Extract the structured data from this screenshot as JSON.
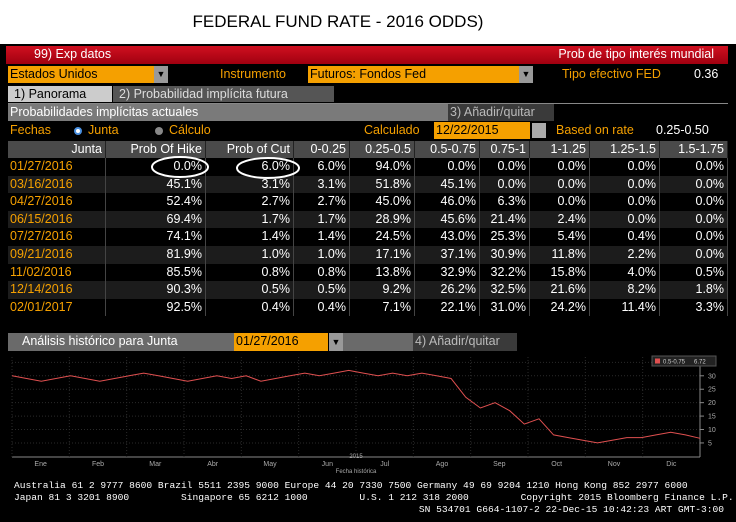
{
  "header": {
    "title": "FEDERAL FUND RATE - 2016 ODDS)"
  },
  "menu": {
    "left": "99) Exp datos",
    "right": "Prob de tipo interés mundial"
  },
  "controls": {
    "country": "Estados Unidos",
    "instrument_label": "Instrumento",
    "instrument": "Futuros: Fondos Fed",
    "effective_label": "Tipo efectivo FED",
    "effective_value": "0.36"
  },
  "tabs": [
    "1) Panorama",
    "2) Probabilidad implícita futura"
  ],
  "section": {
    "title": "Probabilidades implícitas actuales",
    "action": "3) Añadir/quitar"
  },
  "options": {
    "dates_label": "Fechas",
    "radio_1": "Junta",
    "radio_2": "Cálculo",
    "calc_label": "Calculado",
    "calc_date": "12/22/2015",
    "rate_label": "Based on rate",
    "rate_value": "0.25-0.50"
  },
  "table": {
    "columns": [
      "Junta",
      "Prob Of Hike",
      "Prob of Cut",
      "0-0.25",
      "0.25-0.5",
      "0.5-0.75",
      "0.75-1",
      "1-1.25",
      "1.25-1.5",
      "1.5-1.75"
    ],
    "rows": [
      [
        "01/27/2016",
        "0.0%",
        "6.0%",
        "6.0%",
        "94.0%",
        "0.0%",
        "0.0%",
        "0.0%",
        "0.0%",
        "0.0%"
      ],
      [
        "03/16/2016",
        "45.1%",
        "3.1%",
        "3.1%",
        "51.8%",
        "45.1%",
        "0.0%",
        "0.0%",
        "0.0%",
        "0.0%"
      ],
      [
        "04/27/2016",
        "52.4%",
        "2.7%",
        "2.7%",
        "45.0%",
        "46.0%",
        "6.3%",
        "0.0%",
        "0.0%",
        "0.0%"
      ],
      [
        "06/15/2016",
        "69.4%",
        "1.7%",
        "1.7%",
        "28.9%",
        "45.6%",
        "21.4%",
        "2.4%",
        "0.0%",
        "0.0%"
      ],
      [
        "07/27/2016",
        "74.1%",
        "1.4%",
        "1.4%",
        "24.5%",
        "43.0%",
        "25.3%",
        "5.4%",
        "0.4%",
        "0.0%"
      ],
      [
        "09/21/2016",
        "81.9%",
        "1.0%",
        "1.0%",
        "17.1%",
        "37.1%",
        "30.9%",
        "11.8%",
        "2.2%",
        "0.0%"
      ],
      [
        "11/02/2016",
        "85.5%",
        "0.8%",
        "0.8%",
        "13.8%",
        "32.9%",
        "32.2%",
        "15.8%",
        "4.0%",
        "0.5%"
      ],
      [
        "12/14/2016",
        "90.3%",
        "0.5%",
        "0.5%",
        "9.2%",
        "26.2%",
        "32.5%",
        "21.6%",
        "8.2%",
        "1.8%"
      ],
      [
        "02/01/2017",
        "92.5%",
        "0.4%",
        "0.4%",
        "7.1%",
        "22.1%",
        "31.0%",
        "24.2%",
        "11.4%",
        "3.3%"
      ]
    ]
  },
  "history": {
    "title": "Análisis histórico para Junta",
    "date": "01/27/2016",
    "action": "4) Añadir/quitar",
    "chart": {
      "type": "line",
      "categories": [
        "Ene",
        "Feb",
        "Mar",
        "Abr",
        "May",
        "Jun",
        "Jul",
        "Ago",
        "Sep",
        "Oct",
        "Nov",
        "Dic"
      ],
      "xlabel": "Fecha histórica",
      "year": "2015",
      "series": [
        {
          "name": "0.5-0.75",
          "color": "#e05050",
          "values": [
            30,
            29,
            28,
            29,
            30,
            29,
            28,
            29,
            30,
            31,
            30,
            29,
            28,
            29,
            30,
            29,
            30,
            28,
            29,
            30,
            31,
            30,
            31,
            32,
            31,
            30,
            31,
            30,
            31,
            30,
            29,
            22,
            18,
            20,
            17,
            12,
            14,
            8,
            7,
            6,
            5,
            6,
            7,
            7,
            8,
            9,
            8,
            6.72
          ]
        }
      ],
      "ylim": [
        2,
        37
      ],
      "yticks": [
        5,
        10,
        15,
        20,
        25,
        30,
        35
      ],
      "grid": true
    }
  },
  "footer": {
    "lines": [
      "Australia 61 2 9777 8600 Brazil 5511 2395 9000 Europe 44 20 7330 7500 Germany 49 69 9204 1210 Hong Kong 852 2977 6000",
      "Japan 81 3 3201 8900         Singapore 65 6212 1000         U.S. 1 212 318 2000         Copyright 2015 Bloomberg Finance L.P.",
      "SN 534701 G664-1107-2 22-Dec-15 10:42:23 ART  GMT-3:00"
    ]
  }
}
